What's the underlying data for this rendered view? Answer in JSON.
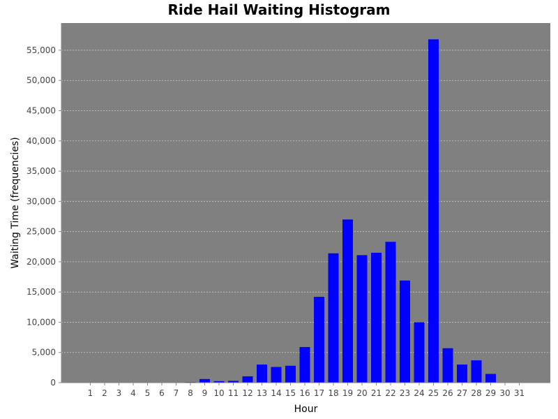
{
  "chart_data": {
    "type": "bar",
    "title": "Ride Hail Waiting Histogram",
    "xlabel": "Hour",
    "ylabel": "Waiting Time (frequencies)",
    "ylim": [
      0,
      59500
    ],
    "yticks": [
      0,
      5000,
      10000,
      15000,
      20000,
      25000,
      30000,
      35000,
      40000,
      45000,
      50000,
      55000
    ],
    "ytick_labels": [
      "0",
      "5,000",
      "10,000",
      "15,000",
      "20,000",
      "25,000",
      "30,000",
      "35,000",
      "40,000",
      "45,000",
      "50,000",
      "55,000"
    ],
    "grid": true,
    "categories": [
      "1",
      "2",
      "3",
      "4",
      "5",
      "6",
      "7",
      "8",
      "9",
      "10",
      "11",
      "12",
      "13",
      "14",
      "15",
      "16",
      "17",
      "18",
      "19",
      "20",
      "21",
      "22",
      "23",
      "24",
      "25",
      "26",
      "27",
      "28",
      "29",
      "30",
      "31"
    ],
    "values": [
      0,
      0,
      0,
      0,
      0,
      0,
      0,
      100,
      600,
      250,
      300,
      1050,
      3000,
      2600,
      2800,
      5900,
      14200,
      21400,
      27000,
      21100,
      21500,
      23300,
      16900,
      10000,
      56800,
      5700,
      3000,
      3700,
      1450,
      0,
      0
    ],
    "colors": {
      "bar": "#0000ff",
      "plot_bg": "#808080",
      "grid": "#c8c8c8"
    }
  }
}
